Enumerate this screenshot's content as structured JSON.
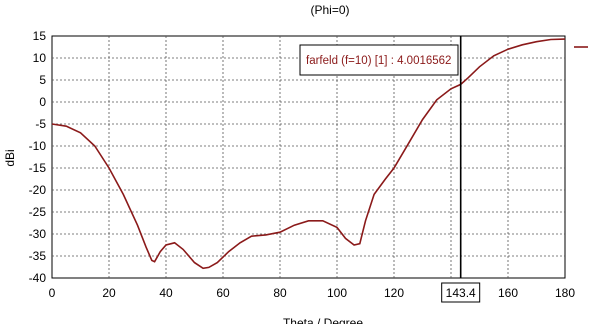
{
  "chart_data": {
    "type": "line",
    "title": "(Phi=0)",
    "xlabel": "Theta / Degree",
    "ylabel": "dBi",
    "xlim": [
      0,
      180
    ],
    "ylim": [
      -40,
      15
    ],
    "xticks": [
      0,
      20,
      40,
      60,
      80,
      100,
      120,
      140,
      160,
      180
    ],
    "yticks": [
      15,
      10,
      5,
      0,
      -5,
      -10,
      -15,
      -20,
      -25,
      -30,
      -35,
      -40
    ],
    "grid": true,
    "series_color": "#8b1a1a",
    "series": [
      {
        "x": [
          0,
          5,
          10,
          15,
          20,
          25,
          30,
          33,
          35,
          36,
          38,
          40,
          43,
          46,
          50,
          53,
          55,
          58,
          62,
          66,
          70,
          75,
          80,
          85,
          90,
          95,
          100,
          103,
          106,
          108,
          110,
          113,
          117,
          120,
          125,
          130,
          135,
          140,
          143.4,
          146,
          150,
          155,
          160,
          165,
          170,
          175,
          180
        ],
        "y": [
          -5,
          -5.5,
          -7,
          -10,
          -15,
          -21,
          -28,
          -33,
          -36,
          -36.3,
          -34,
          -32.5,
          -32,
          -33.5,
          -36.5,
          -37.8,
          -37.6,
          -36.5,
          -34,
          -32,
          -30.5,
          -30.2,
          -29.6,
          -28,
          -27,
          -27,
          -28.5,
          -31,
          -32.5,
          -32.2,
          -27,
          -21,
          -17.5,
          -15,
          -9.5,
          -4,
          0.5,
          3,
          4.0016562,
          5.5,
          8,
          10.5,
          12,
          13,
          13.7,
          14.2,
          14.3
        ]
      }
    ],
    "marker": {
      "x": 143.4,
      "x_label": "143.4",
      "annotation": "farfeld (f=10) [1] : 4.0016562"
    }
  }
}
